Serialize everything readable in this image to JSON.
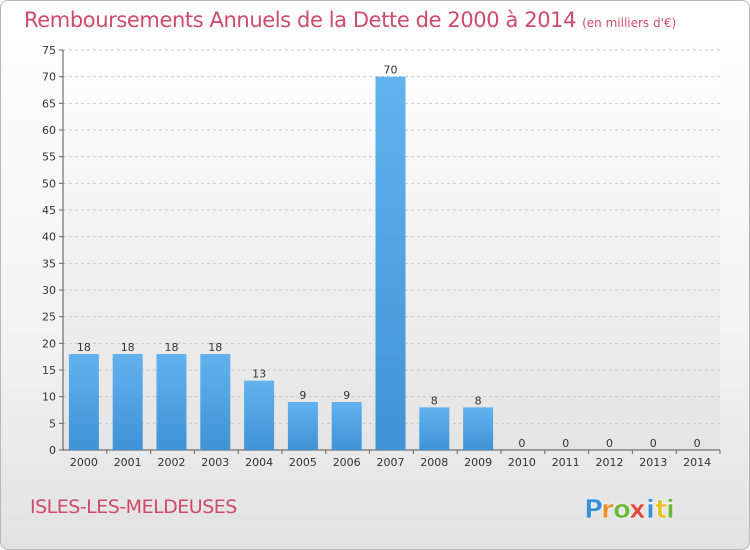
{
  "chart_data": {
    "type": "bar",
    "title": "Remboursements Annuels de la Dette de 2000 à 2014",
    "subtitle": "(en milliers d'€)",
    "categories": [
      "2000",
      "2001",
      "2002",
      "2003",
      "2004",
      "2005",
      "2006",
      "2007",
      "2008",
      "2009",
      "2010",
      "2011",
      "2012",
      "2013",
      "2014"
    ],
    "values": [
      18,
      18,
      18,
      18,
      13,
      9,
      9,
      70,
      8,
      8,
      0,
      0,
      0,
      0,
      0
    ],
    "data_labels": [
      "18",
      "18",
      "18",
      "18",
      "13",
      "9",
      "9",
      "70",
      "8",
      "8",
      "0",
      "0",
      "0",
      "0",
      "0"
    ],
    "ylim": [
      0,
      75
    ],
    "yticks": [
      0,
      5,
      10,
      15,
      20,
      25,
      30,
      35,
      40,
      45,
      50,
      55,
      60,
      65,
      70,
      75
    ],
    "grid": true,
    "bar_color": "#3f93d6"
  },
  "commune": "ISLES-LES-MELDEUSES",
  "logo": {
    "text": "Proxiti",
    "letters": [
      {
        "ch": "P",
        "color": "#3a8fd9"
      },
      {
        "ch": "r",
        "color": "#e8912a"
      },
      {
        "ch": "o",
        "color": "#6fb83a"
      },
      {
        "ch": "x",
        "color": "#e04a3a"
      },
      {
        "ch": "i",
        "color": "#3a8fd9"
      },
      {
        "ch": "t",
        "color": "#e8c12a"
      },
      {
        "ch": "i",
        "color": "#6fb83a"
      }
    ]
  }
}
